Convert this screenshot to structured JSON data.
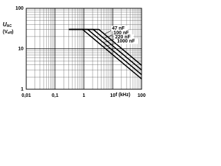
{
  "chart_data": {
    "type": "line",
    "ylabel": [
      "U",
      "AC"
    ],
    "yunit": [
      "(V",
      "eff",
      ")"
    ],
    "xlabel": "f (kHz)",
    "xscale": "log",
    "yscale": "log",
    "xlim": [
      0.01,
      100
    ],
    "ylim": [
      1,
      100
    ],
    "xticks": [
      {
        "value": 0.01,
        "label": "0,01"
      },
      {
        "value": 0.1,
        "label": "0,1"
      },
      1,
      10,
      100
    ],
    "yticks": [
      1,
      10,
      100
    ],
    "grid": true,
    "minor_grid": true,
    "series": [
      {
        "name": "47 nF",
        "color": "#000000",
        "x": [
          0.3,
          3.3,
          100
        ],
        "values": [
          30,
          30,
          3.9
        ]
      },
      {
        "name": "100 nF",
        "color": "#000000",
        "x": [
          0.3,
          2.1,
          100
        ],
        "values": [
          30,
          30,
          3.0
        ]
      },
      {
        "name": "220 nF",
        "color": "#000000",
        "x": [
          0.3,
          1.35,
          100
        ],
        "values": [
          30,
          30,
          2.3
        ]
      },
      {
        "name": "1000 nF",
        "color": "#000000",
        "x": [
          0.3,
          0.9,
          100
        ],
        "values": [
          30,
          30,
          1.8
        ]
      }
    ]
  }
}
